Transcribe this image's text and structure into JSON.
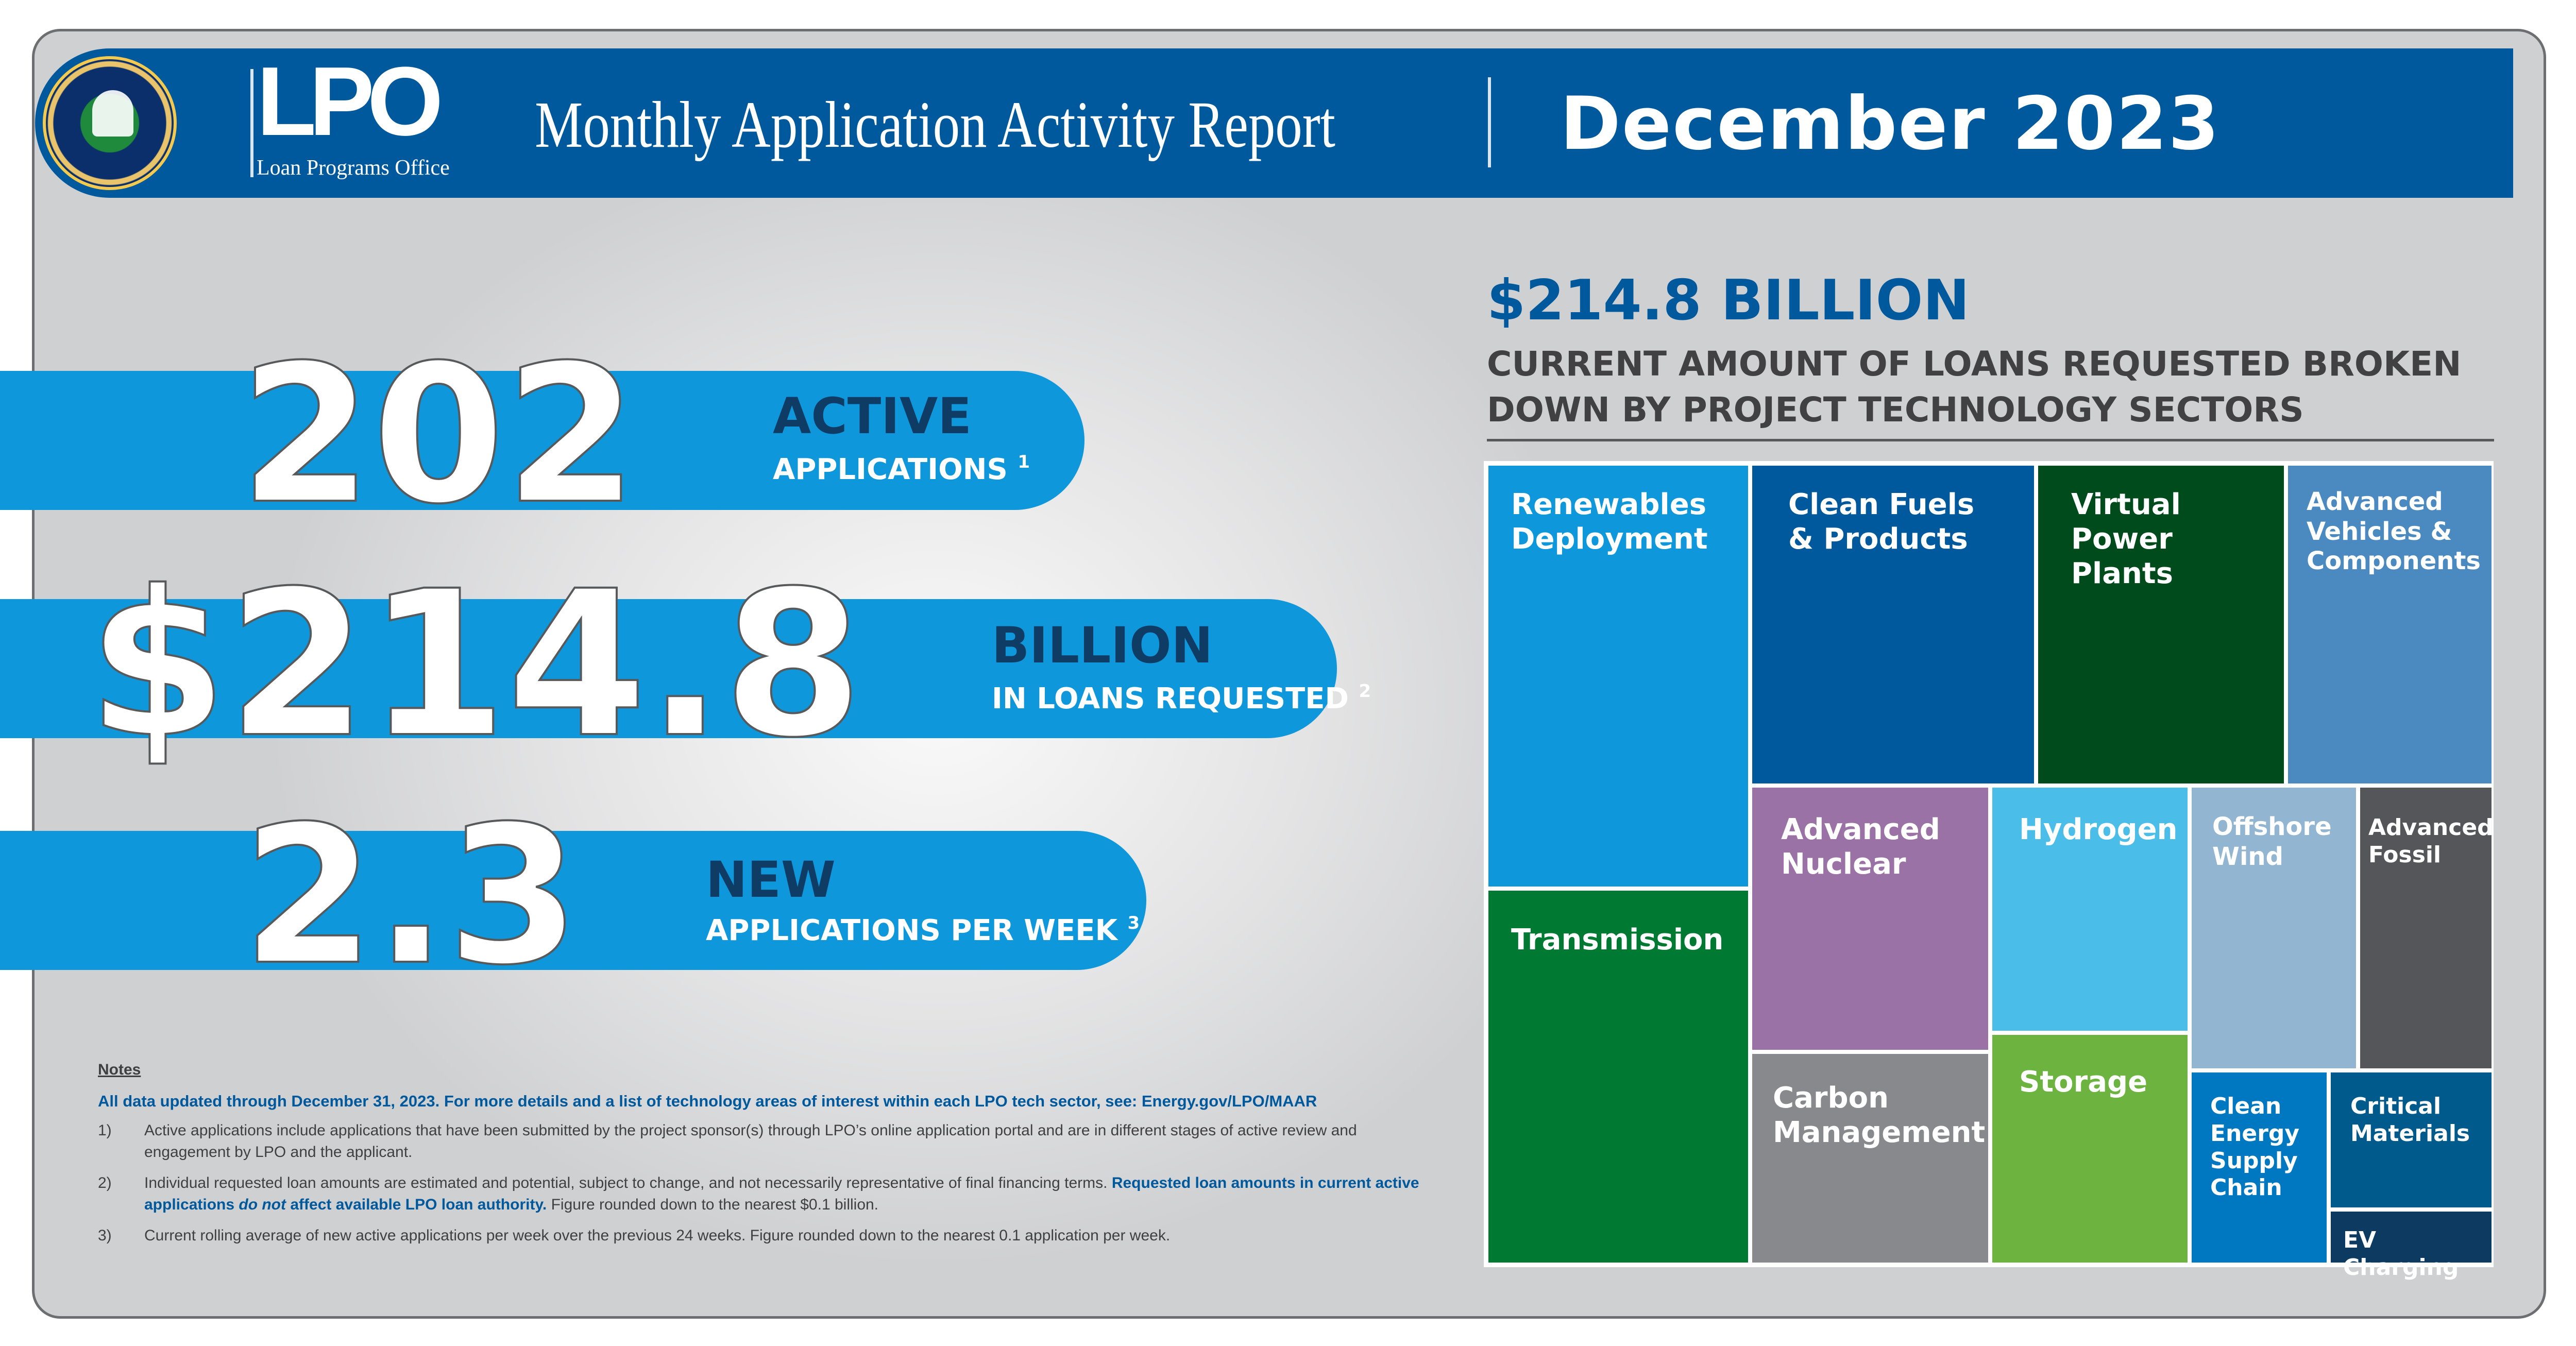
{
  "header": {
    "logo": "LPO",
    "logo_subtitle": "Loan Programs Office",
    "seal": "U.S. Department of Energy seal",
    "title": "Monthly Application Activity Report",
    "month": "December 2023"
  },
  "stats": [
    {
      "value": "202",
      "title": "ACTIVE",
      "subtitle": "APPLICATIONS",
      "footnote": "1"
    },
    {
      "value": "$214.8",
      "title": "BILLION",
      "subtitle": "IN LOANS REQUESTED",
      "footnote": "2"
    },
    {
      "value": "2.3",
      "title": "NEW",
      "subtitle": "APPLICATIONS PER WEEK",
      "footnote": "3"
    }
  ],
  "right_header": {
    "amount": "$214.8 BILLION",
    "description": "CURRENT AMOUNT OF LOANS REQUESTED BROKEN DOWN BY PROJECT TECHNOLOGY SECTORS"
  },
  "treemap": {
    "sectors": [
      {
        "label": "Renewables\nDeployment",
        "color": "#0f97dc"
      },
      {
        "label": "Transmission",
        "color": "#007a33"
      },
      {
        "label": "Clean Fuels\n& Products",
        "color": "#00599c"
      },
      {
        "label": "Virtual\nPower\nPlants",
        "color": "#004b1c"
      },
      {
        "label": "Advanced\nVehicles &\nComponents",
        "color": "#4a8ac0"
      },
      {
        "label": "Advanced\nNuclear",
        "color": "#9a72a5"
      },
      {
        "label": "Carbon\nManagement",
        "color": "#88898c"
      },
      {
        "label": "Hydrogen",
        "color": "#4bbde9"
      },
      {
        "label": "Storage",
        "color": "#6cb33f"
      },
      {
        "label": "Offshore\nWind",
        "color": "#92b6d1"
      },
      {
        "label": "Advanced\nFossil",
        "color": "#545659"
      },
      {
        "label": "Clean\nEnergy\nSupply\nChain",
        "color": "#0078c1"
      },
      {
        "label": "Critical\nMaterials",
        "color": "#005a8c"
      },
      {
        "label": "EV Charging",
        "color": "#0c3a60"
      }
    ]
  },
  "notes": {
    "heading": "Notes",
    "lead": "All data updated through December 31, 2023. For more details and a list of technology areas of interest within each LPO tech sector, see: Energy.gov/LPO/MAAR",
    "items": [
      {
        "num": "1)",
        "text": "Active applications include applications that have been submitted by the project sponsor(s) through LPO’s online application portal and are in different stages of active review and engagement by LPO and the applicant."
      },
      {
        "num": "2)",
        "text_a": "Individual requested loan amounts are estimated and potential, subject to change, and not necessarily representative of final financing terms. ",
        "text_b": "Requested loan amounts in current active applications ",
        "text_c": "do not",
        "text_d": " affect available LPO loan authority.",
        "text_e": " Figure rounded down to the nearest $0.1 billion."
      },
      {
        "num": "3)",
        "text": "Current rolling average of new active applications per week over the previous 24 weeks. Figure rounded down to the nearest 0.1 application per week."
      }
    ]
  }
}
